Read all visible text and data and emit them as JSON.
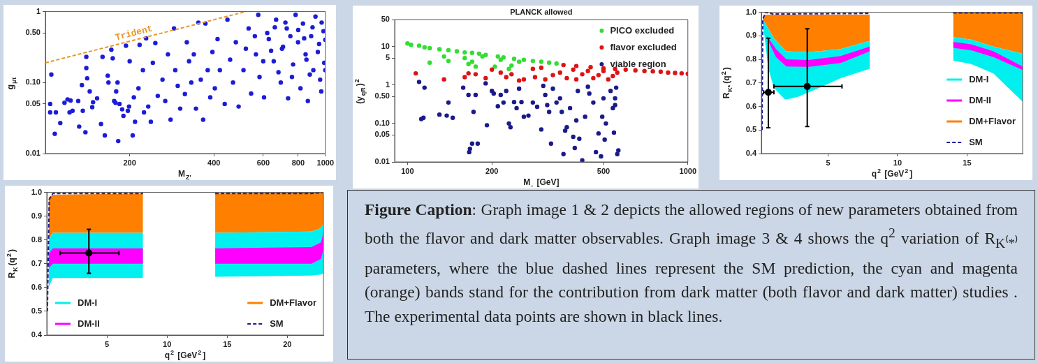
{
  "chart_data": [
    {
      "type": "scatter",
      "xlabel": "M$_{Z'}$",
      "ylabel": "g$_{μτ}$",
      "log": "xy",
      "marker": "circle",
      "xlim": [
        100,
        1000
      ],
      "ylim": [
        0.01,
        1
      ],
      "xticks": [
        200,
        400,
        600,
        800,
        1000
      ],
      "yticks": [
        0.01,
        0.05,
        {
          "value": 0.1,
          "label": "0.10"
        },
        {
          "value": 0.5,
          "label": "0.50"
        },
        1
      ],
      "series": [
        {
          "color": "#1c1cd8",
          "x": [
            104,
            105,
            104,
            109,
            108,
            113,
            117,
            120,
            123,
            122,
            125,
            132,
            131,
            136,
            135,
            139,
            140,
            140,
            141,
            144,
            147,
            148,
            153,
            158,
            160,
            163,
            167,
            168,
            172,
            174,
            176,
            178,
            182,
            179,
            181,
            184,
            188,
            190,
            194,
            197,
            199,
            200,
            205,
            207,
            209,
            215,
            217,
            223,
            225,
            229,
            233,
            238,
            242,
            247,
            252,
            262,
            268,
            274,
            280,
            288,
            291,
            297,
            303,
            315,
            320,
            326,
            332,
            339,
            345,
            352,
            359,
            366,
            373,
            380,
            388,
            395,
            403,
            412,
            420,
            437,
            447,
            457,
            468,
            479,
            490,
            510,
            532,
            543,
            565,
            576,
            582,
            604,
            628,
            654,
            667,
            693,
            706,
            728,
            736,
            767,
            783,
            799,
            815,
            832,
            856,
            866,
            890,
            906,
            922,
            940,
            958,
            967,
            985,
            991,
            620,
            700,
            750,
            850,
            950,
            680,
            900,
            1000,
            800,
            640,
            560,
            520,
            600,
            720,
            880,
            970,
            760,
            660,
            840,
            1000
          ],
          "values": [
            0.05,
            0.13,
            0.038,
            0.038,
            0.019,
            0.027,
            0.052,
            0.058,
            0.056,
            0.038,
            0.04,
            0.024,
            0.055,
            0.04,
            0.092,
            0.02,
            0.16,
            0.23,
            0.115,
            0.075,
            0.045,
            0.053,
            0.06,
            0.026,
            0.23,
            0.018,
            0.125,
            0.1,
            0.29,
            0.22,
            0.055,
            0.052,
            0.015,
            0.075,
            0.1,
            0.05,
            0.042,
            0.034,
            0.33,
            0.04,
            0.046,
            0.2,
            0.018,
            0.062,
            0.028,
            0.083,
            0.34,
            0.15,
            0.038,
            0.42,
            0.046,
            0.028,
            0.19,
            0.36,
            0.065,
            0.11,
            0.055,
            0.25,
            0.03,
            0.58,
            0.15,
            0.09,
            0.043,
            0.069,
            0.37,
            0.2,
            0.1,
            0.25,
            0.043,
            0.7,
            0.11,
            0.03,
            0.68,
            0.15,
            0.062,
            0.27,
            0.083,
            0.41,
            0.15,
            0.05,
            0.77,
            0.21,
            0.1,
            0.37,
            0.046,
            0.15,
            0.58,
            0.07,
            0.25,
            0.9,
            0.12,
            0.062,
            0.41,
            0.2,
            0.77,
            0.1,
            0.32,
            0.58,
            0.06,
            0.18,
            0.9,
            0.37,
            0.083,
            0.68,
            0.21,
            0.055,
            0.45,
            0.15,
            0.85,
            0.27,
            0.11,
            0.075,
            0.53,
            0.19,
            0.5,
            0.3,
            0.45,
            0.25,
            0.35,
            0.14,
            0.6,
            0.4,
            0.55,
            0.28,
            0.45,
            0.3,
            0.2,
            0.7,
            0.13,
            0.7,
            0.12,
            0.6,
            0.42,
            0.15
          ]
        },
        {
          "name": "Trident",
          "type": "line",
          "marker": "none",
          "line_style": "dashed",
          "color": "#e8962a",
          "x": [
            100,
            520
          ],
          "values": [
            0.19,
            1
          ]
        }
      ]
    },
    {
      "type": "scatter",
      "title": "PLANCK allowed",
      "xlabel": "M$_{-}$ [GeV]",
      "ylabel": "(y$_{qR}$)$^{2}$",
      "log": "xy",
      "marker": "circle",
      "legend": "top right",
      "xlim": [
        90,
        1000
      ],
      "ylim": [
        0.01,
        50
      ],
      "xticks": [
        100,
        200,
        500,
        1000
      ],
      "yticks": [
        0.01,
        0.05,
        {
          "value": 0.1,
          "label": "0.10"
        },
        {
          "value": 0.5,
          "label": "0.50"
        },
        1,
        5,
        10,
        50
      ],
      "series": [
        {
          "name": "PICO excluded",
          "color": "#33dd33",
          "x": [
            100,
            103,
            110,
            115,
            120,
            130,
            140,
            150,
            160,
            170,
            180,
            190,
            210,
            220,
            240,
            260,
            280,
            300,
            320,
            340,
            120,
            135,
            140,
            160,
            165,
            170,
            175,
            185,
            205,
            215,
            235,
            230,
            250
          ],
          "values": [
            12,
            11,
            10.5,
            9.5,
            9,
            8.5,
            8,
            7.5,
            7,
            6.8,
            6.5,
            6,
            5.5,
            5.2,
            4.8,
            4.5,
            4.2,
            4,
            3.8,
            3.6,
            3.8,
            5.5,
            4.2,
            5,
            3.5,
            4,
            3,
            5.5,
            3,
            4.5,
            3.2,
            2.6,
            4
          ]
        },
        {
          "name": "flavor excluded",
          "color": "#dd1414",
          "x": [
            360,
            400,
            450,
            500,
            550,
            600,
            650,
            700,
            750,
            800,
            850,
            900,
            950,
            1000,
            107,
            135,
            160,
            165,
            175,
            190,
            200,
            215,
            225,
            235,
            250,
            260,
            280,
            285,
            300,
            310,
            330,
            350,
            370,
            390,
            400,
            420,
            440,
            460,
            480,
            500,
            520,
            540,
            560
          ],
          "values": [
            3.3,
            3.1,
            2.9,
            2.7,
            2.6,
            2.5,
            2.4,
            2.3,
            2.25,
            2.2,
            2.1,
            2.05,
            2,
            1.95,
            2,
            1.4,
            1.6,
            2,
            1.9,
            1.5,
            2.5,
            2.1,
            1.6,
            1.9,
            1.3,
            1.4,
            2.6,
            1.6,
            2.8,
            1.4,
            1.8,
            2.1,
            1.5,
            2.5,
            1.4,
            1.9,
            2.3,
            1.5,
            1.8,
            2.3,
            1.4,
            1.7,
            2.1
          ]
        },
        {
          "name": "viable region",
          "color": "#1a1a8c",
          "x": [
            110,
            115,
            112,
            114,
            130,
            138,
            145,
            140,
            158,
            165,
            170,
            167,
            172,
            175,
            166,
            178,
            190,
            192,
            200,
            203,
            210,
            215,
            220,
            225,
            230,
            233,
            240,
            245,
            250,
            255,
            260,
            270,
            280,
            290,
            300,
            305,
            310,
            315,
            320,
            325,
            330,
            340,
            350,
            355,
            360,
            365,
            370,
            380,
            390,
            395,
            400,
            405,
            410,
            420,
            430,
            440,
            445,
            460,
            470,
            480,
            490,
            495,
            500,
            505,
            510,
            530,
            540,
            545,
            550,
            555,
            560,
            565,
            550
          ],
          "values": [
            1.2,
            0.85,
            0.13,
            0.14,
            0.17,
            0.16,
            0.14,
            0.35,
            0.85,
            0.55,
            0.03,
            0.022,
            0.2,
            0.55,
            0.018,
            0.03,
            1.1,
            0.09,
            0.7,
            0.6,
            0.28,
            0.55,
            0.35,
            0.7,
            0.1,
            0.08,
            0.36,
            0.25,
            0.8,
            0.36,
            0.15,
            0.16,
            0.35,
            0.27,
            0.07,
            0.95,
            0.55,
            0.3,
            0.2,
            0.03,
            0.8,
            0.35,
            0.45,
            0.2,
            0.016,
            0.065,
            0.08,
            0.25,
            0.045,
            0.023,
            0.12,
            0.7,
            0.04,
            0.011,
            0.15,
            0.9,
            0.6,
            0.35,
            0.018,
            0.055,
            0.014,
            0.15,
            0.45,
            0.038,
            0.1,
            0.7,
            0.25,
            0.058,
            0.45,
            0.85,
            0.016,
            0.02,
            0.3
          ]
        }
      ]
    },
    {
      "type": "line",
      "xlabel": "q$^{2}$ [GeV$^{2}$]",
      "ylabel": "R$_{K*}$(q$^{2}$)",
      "legend": "bottom right",
      "xlim": [
        0.2,
        19
      ],
      "ylim": [
        0.4,
        1
      ],
      "xticks": [
        5,
        10,
        15
      ],
      "yticks": [
        0.4,
        0.5,
        0.6,
        0.7,
        0.8,
        0.9,
        {
          "value": 1,
          "label": "1.0"
        }
      ],
      "series": [
        {
          "name": "DM-I",
          "color": "#00f0f0",
          "x": [
            0.3,
            0.4,
            0.7,
            1.1,
            1.25,
            1.9,
            2,
            2.8,
            3.6,
            4.4,
            5.9,
            8,
            11,
            14,
            15.3,
            16.9,
            19
          ],
          "values": [
            null,
            null,
            null,
            null,
            null,
            null,
            null,
            null,
            null,
            null,
            null,
            null,
            null,
            null,
            null,
            null,
            null
          ],
          "lower": [
            0.95,
            0.91,
            0.76,
            0.68,
            0.67,
            0.63,
            0.63,
            0.64,
            0.66,
            0.68,
            0.72,
            0.76,
            null,
            0.795,
            0.78,
            0.74,
            0.62
          ],
          "upper": [
            0.97,
            0.96,
            0.93,
            0.89,
            0.88,
            0.84,
            0.834,
            0.832,
            0.831,
            0.835,
            0.844,
            0.879,
            null,
            0.894,
            0.884,
            0.854,
            0.824
          ]
        },
        {
          "name": "DM-II",
          "color": "#ff00ff",
          "x": [
            0.6,
            1.25,
            2,
            3.6,
            5.9,
            8,
            11,
            14,
            15.3,
            16.9,
            19
          ],
          "values": [
            null,
            null,
            null,
            null,
            null,
            null,
            null,
            null,
            null,
            null,
            null
          ],
          "lower": [
            0.89,
            0.81,
            0.77,
            0.768,
            0.785,
            0.834,
            null,
            0.849,
            0.839,
            0.81,
            0.755
          ],
          "upper": [
            0.9,
            0.844,
            0.8,
            0.797,
            0.814,
            0.854,
            null,
            0.874,
            0.864,
            0.834,
            0.77
          ]
        },
        {
          "name": "DM+Flavor",
          "color": "#ff8000",
          "x": [
            0.3,
            0.4,
            0.7,
            1.1,
            1.25,
            1.9,
            2,
            2.8,
            3.6,
            4.4,
            5.9,
            8,
            11,
            14,
            15.3,
            16.9,
            19
          ],
          "values": [
            null,
            null,
            null,
            null,
            null,
            null,
            null,
            null,
            null,
            null,
            null,
            null,
            null,
            null,
            null,
            null,
            null
          ],
          "lower": [
            0.97,
            0.96,
            0.93,
            0.89,
            0.88,
            0.84,
            0.834,
            0.832,
            0.831,
            0.835,
            0.844,
            0.879,
            null,
            0.894,
            0.884,
            0.854,
            0.824
          ],
          "upper": [
            0.98,
            0.99,
            0.99,
            0.99,
            0.99,
            0.99,
            0.99,
            0.99,
            0.99,
            0.99,
            0.99,
            0.99,
            null,
            1,
            1,
            1,
            1
          ]
        },
        {
          "name": "SM",
          "type": "line",
          "marker": "none",
          "line_style": "dashed",
          "color": "#1a1a99",
          "x": [
            0.25,
            0.3,
            0.5,
            1,
            2,
            8,
            11,
            14,
            19
          ],
          "values": [
            0.5,
            0.97,
            1,
            0.993,
            0.993,
            0.995,
            null,
            0.997,
            0.997
          ]
        },
        {
          "type": "scatter",
          "marker": "circle",
          "color": "#000000",
          "x": [
            0.7,
            3.5
          ],
          "values": [
            0.66,
            0.685
          ],
          "errors": [
            [
              0.51,
              0.89
            ],
            [
              0.515,
              0.93
            ]
          ],
          "xerrors": [
            [
              0.36,
              1.1
            ],
            [
              1.1,
              6
            ]
          ]
        }
      ]
    },
    {
      "type": "line",
      "xlabel": "q$^{2}$ [GeV$^{2}$]",
      "ylabel": "R$_{K}$(q$^{2}$)",
      "legend": "bottom",
      "xlim": [
        0,
        23
      ],
      "ylim": [
        0.4,
        1
      ],
      "xticks": [
        5,
        10,
        15,
        20
      ],
      "yticks": [
        0.4,
        0.5,
        0.6,
        0.7,
        0.8,
        0.9,
        {
          "value": 1,
          "label": "1.0"
        }
      ],
      "series": [
        {
          "name": "DM-I",
          "color": "#00f0f0",
          "x": [
            0.15,
            0.5,
            8,
            11,
            14,
            22,
            22.8,
            23
          ],
          "values": [
            null,
            null,
            null,
            null,
            null,
            null,
            null,
            null
          ],
          "lower": [
            0.6,
            0.64,
            0.64,
            null,
            0.645,
            0.65,
            0.655,
            0.66
          ],
          "upper": [
            0.8,
            0.83,
            0.83,
            null,
            0.83,
            0.835,
            0.85,
            0.87
          ]
        },
        {
          "name": "DM-II",
          "color": "#ff00ff",
          "x": [
            0.15,
            0.5,
            8,
            11,
            14,
            22,
            22.8,
            23
          ],
          "values": [
            null,
            null,
            null,
            null,
            null,
            null,
            null,
            null
          ],
          "lower": [
            0.68,
            0.7,
            0.7,
            null,
            0.7,
            0.7,
            0.72,
            0.76
          ],
          "upper": [
            0.74,
            0.765,
            0.765,
            null,
            0.765,
            0.77,
            0.79,
            0.83
          ]
        },
        {
          "name": "DM+Flavor",
          "color": "#ff8000",
          "x": [
            0.15,
            0.5,
            8,
            11,
            14,
            22,
            22.8,
            23
          ],
          "values": [
            null,
            null,
            null,
            null,
            null,
            null,
            null,
            null
          ],
          "lower": [
            0.8,
            0.83,
            0.83,
            null,
            0.83,
            0.835,
            0.85,
            0.87
          ],
          "upper": [
            0.98,
            0.99,
            0.995,
            null,
            0.995,
            1,
            1,
            1
          ]
        },
        {
          "name": "SM",
          "type": "line",
          "marker": "none",
          "line_style": "dashed",
          "color": "#1a1a99",
          "x": [
            0.05,
            0.2,
            0.5,
            8,
            11,
            14,
            22,
            23
          ],
          "values": [
            0.5,
            0.97,
            0.995,
            0.995,
            null,
            0.995,
            0.995,
            1
          ]
        },
        {
          "type": "scatter",
          "marker": "circle",
          "color": "#000000",
          "x": [
            3.5
          ],
          "values": [
            0.745
          ],
          "errors": [
            [
              0.66,
              0.845
            ]
          ],
          "xerrors": [
            [
              1.1,
              6
            ]
          ]
        }
      ]
    },
    {
      "type": "other",
      "title": "Figure Caption",
      "annotations": [
        ": Graph image 1 & 2 depicts the allowed regions of new parameters obtained from both the flavor and dark matter observables. Graph image 3 & 4 shows the q$^{2}$ variation of R$_{K⁽*⁾}$ parameters, where the blue dashed lines represent the SM prediction, the cyan and magenta (orange) bands stand for the contribution from dark matter (both flavor and dark matter) studies . The experimental data points are shown in black lines."
      ]
    }
  ]
}
